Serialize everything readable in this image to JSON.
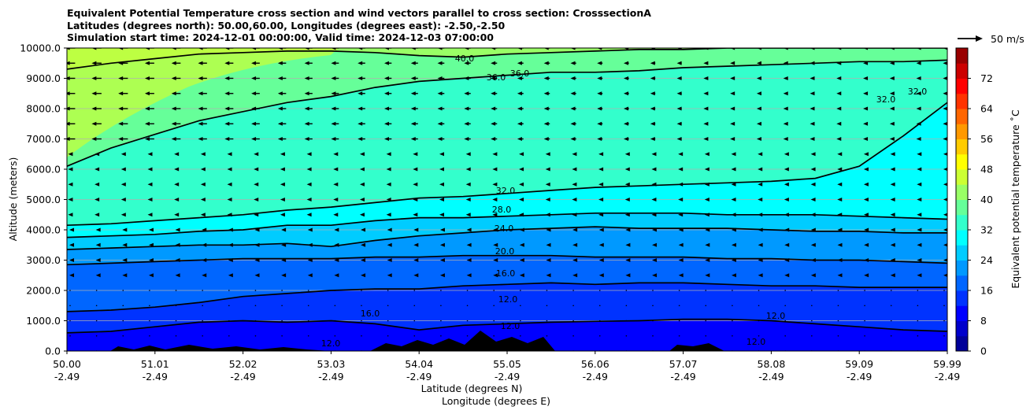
{
  "title": {
    "line1": "Equivalent Potential Temperature cross section and wind vectors parallel to cross section: CrosssectionA",
    "line2": "Latitudes (degrees north): 50.00,60.00, Longitudes (degrees east): -2.50,-2.50",
    "line3": "Simulation start time: 2024-12-01 00:00:00, Valid time: 2024-12-03 07:00:00"
  },
  "chart_data": {
    "type": "filled-contour cross section with wind vectors",
    "ylabel": "Altitude (meters)",
    "xlabel_line1": "Latitude (degrees N)",
    "xlabel_line2": "Longitude (degrees E)",
    "ylim": [
      0,
      10000
    ],
    "y_ticks": [
      0,
      1000,
      2000,
      3000,
      4000,
      5000,
      6000,
      7000,
      8000,
      9000,
      10000
    ],
    "y_tick_labels": [
      "0.0",
      "1000.0",
      "2000.0",
      "3000.0",
      "4000.0",
      "5000.0",
      "6000.0",
      "7000.0",
      "8000.0",
      "9000.0",
      "10000.0"
    ],
    "x_ticks": [
      {
        "lat": "50.00",
        "lon": "-2.49"
      },
      {
        "lat": "51.01",
        "lon": "-2.49"
      },
      {
        "lat": "52.02",
        "lon": "-2.49"
      },
      {
        "lat": "53.03",
        "lon": "-2.49"
      },
      {
        "lat": "54.04",
        "lon": "-2.49"
      },
      {
        "lat": "55.05",
        "lon": "-2.49"
      },
      {
        "lat": "56.06",
        "lon": "-2.49"
      },
      {
        "lat": "57.07",
        "lon": "-2.49"
      },
      {
        "lat": "58.08",
        "lon": "-2.49"
      },
      {
        "lat": "59.09",
        "lon": "-2.49"
      },
      {
        "lat": "59.99",
        "lon": "-2.49"
      }
    ],
    "grid": "horizontal",
    "colorbar": {
      "label": "Equivalent potential temperature ˚C",
      "min": 0,
      "max": 80,
      "step": 4,
      "ticks": [
        0,
        8,
        16,
        24,
        32,
        40,
        48,
        56,
        64,
        72
      ]
    },
    "quiver_key": {
      "label": "50 m/s",
      "magnitude": 50
    },
    "contour_levels_drawn": [
      {
        "label": "12.0",
        "heights": [
          600,
          650,
          800,
          950,
          1000,
          950,
          1000,
          900,
          700,
          850,
          900,
          950,
          980,
          1000,
          1050,
          1050,
          1000,
          900,
          800,
          700,
          650
        ]
      },
      {
        "label": "16.0",
        "heights": [
          1300,
          1350,
          1450,
          1600,
          1800,
          1900,
          2000,
          2050,
          2050,
          2150,
          2200,
          2250,
          2200,
          2250,
          2250,
          2200,
          2150,
          2150,
          2100,
          2100,
          2100
        ]
      },
      {
        "label": "20.0",
        "heights": [
          2850,
          2900,
          2950,
          3000,
          3050,
          3050,
          3050,
          3100,
          3100,
          3150,
          3150,
          3150,
          3100,
          3100,
          3100,
          3050,
          3050,
          3000,
          3000,
          2950,
          2900
        ]
      },
      {
        "label": "24.0",
        "heights": [
          3350,
          3400,
          3450,
          3500,
          3500,
          3550,
          3450,
          3650,
          3800,
          3900,
          4000,
          4050,
          4100,
          4050,
          4050,
          4050,
          4000,
          3950,
          3950,
          3900,
          3900
        ]
      },
      {
        "label": "28.0",
        "heights": [
          3750,
          3800,
          3850,
          3950,
          4000,
          4150,
          4150,
          4300,
          4400,
          4400,
          4450,
          4500,
          4550,
          4550,
          4550,
          4500,
          4500,
          4500,
          4450,
          4400,
          4350
        ]
      },
      {
        "label": "32.0",
        "heights": [
          4150,
          4200,
          4300,
          4400,
          4500,
          4650,
          4750,
          4900,
          5050,
          5100,
          5200,
          5300,
          5400,
          5450,
          5500,
          5550,
          5600,
          5700,
          6100,
          7100,
          8200
        ]
      },
      {
        "label": "36.0",
        "heights": [
          6100,
          6700,
          7150,
          7600,
          7900,
          8200,
          8400,
          8700,
          8900,
          9000,
          9100,
          9200,
          9200,
          9250,
          9350,
          9400,
          9450,
          9500,
          9550,
          9550,
          9600
        ]
      },
      {
        "label": "40.0",
        "heights": [
          9300,
          9500,
          9650,
          9800,
          9850,
          9900,
          9900,
          9850,
          9750,
          9700,
          9800,
          9850,
          9900,
          9950,
          9950,
          10000,
          10000,
          10000,
          10000,
          10000,
          10000
        ]
      }
    ],
    "contour_label_texts": [
      "40.0",
      "36.0",
      "36.0",
      "32.0",
      "32.0",
      "28.0",
      "24.0",
      "20.0",
      "16.0",
      "12.0",
      "12.0",
      "16.0",
      "12.0",
      "12.0",
      "12.0",
      "32.0"
    ],
    "wind": "westerly/easterly vectors parallel to section, strongest (~20 m/s, pointing left) above 7000 m in the southern half, near-zero below 2000 m"
  }
}
